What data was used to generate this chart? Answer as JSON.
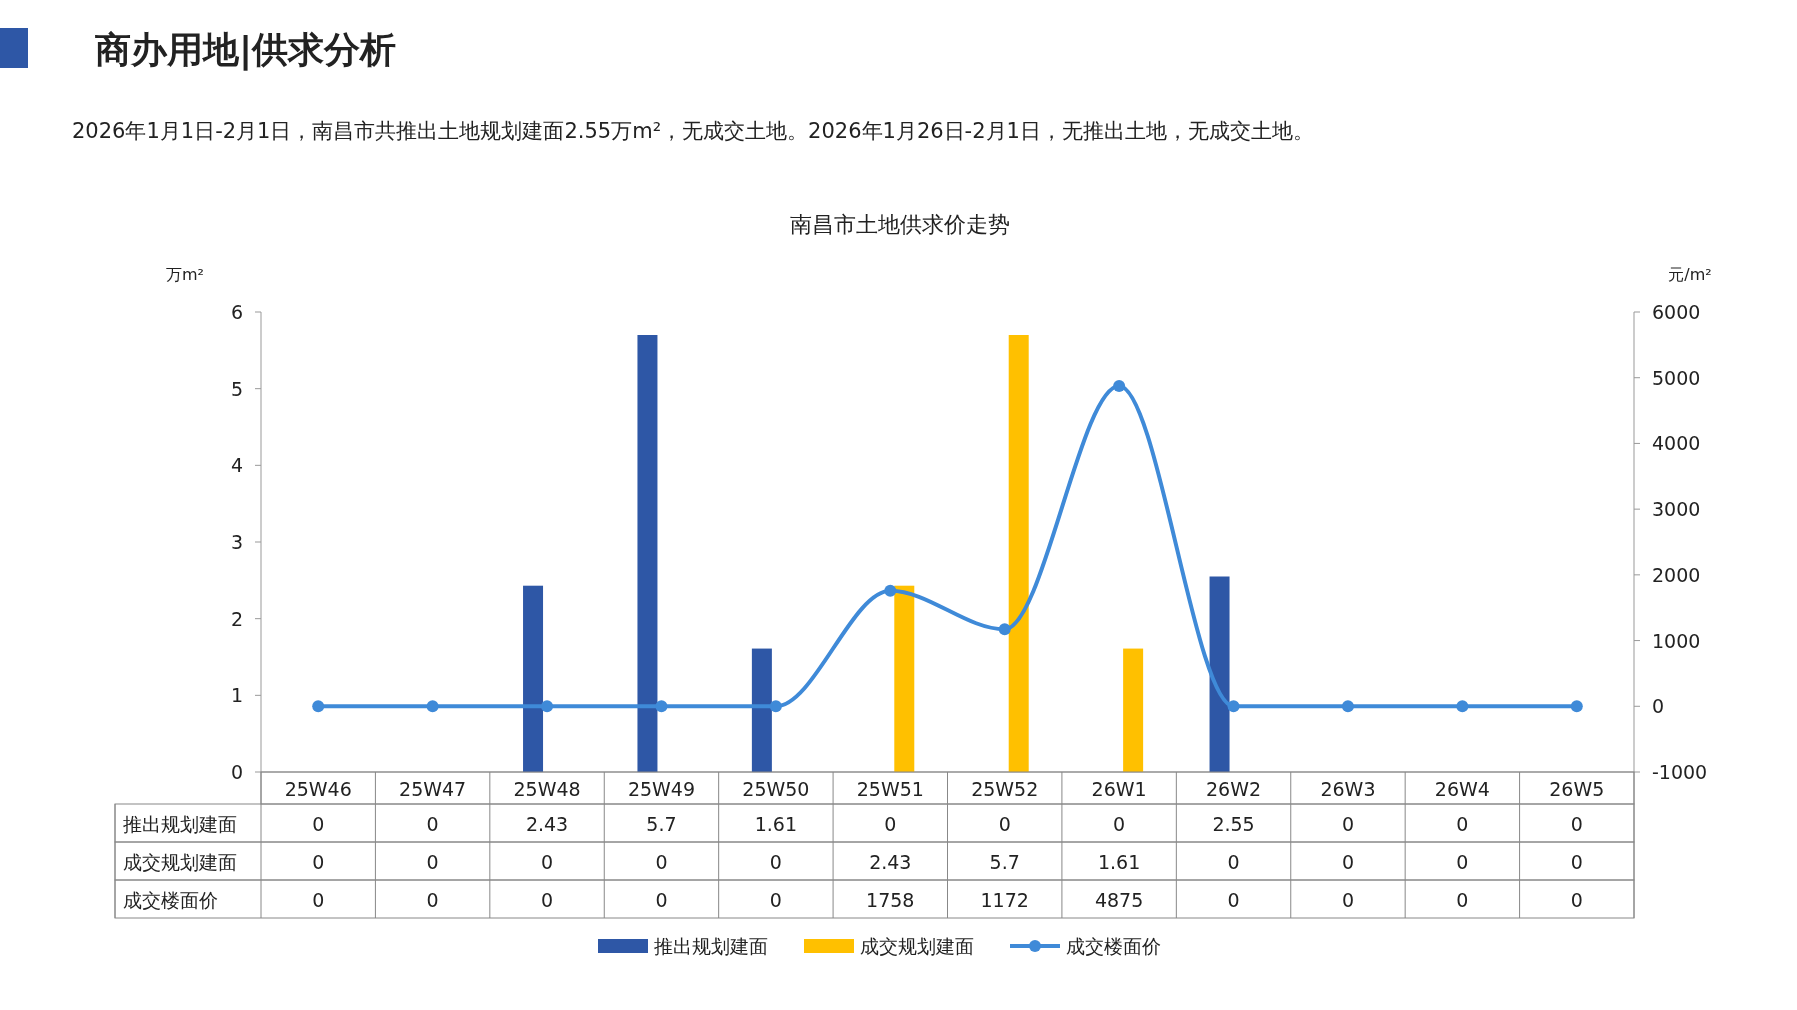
{
  "chart_data": {
    "type": "bar",
    "title": "南昌市土地供求价走势",
    "subtitle": "2026年1月1日-2月1日，南昌市共推出土地规划建面2.55万m²，无成交土地。2026年1月26日-2月1日，无推出土地，无成交土地。",
    "annotations": [
      "商办用地|供求分析"
    ],
    "ylabel": "万m²",
    "y2label": "元/m²",
    "categories": [
      "25W46",
      "25W47",
      "25W48",
      "25W49",
      "25W50",
      "25W51",
      "25W52",
      "26W1",
      "26W2",
      "26W3",
      "26W4",
      "26W5"
    ],
    "series": [
      {
        "name": "推出规划建面",
        "color": "#2e57a6",
        "values": [
          0,
          0,
          2.43,
          5.7,
          1.61,
          0,
          0,
          0,
          2.55,
          0,
          0,
          0
        ]
      },
      {
        "name": "成交规划建面",
        "color": "#ffc000",
        "values": [
          0,
          0,
          0,
          0,
          0,
          2.43,
          5.7,
          1.61,
          0,
          0,
          0,
          0
        ]
      },
      {
        "name": "成交楼面价",
        "type": "line",
        "axis": "y2",
        "color": "#3f8ad8",
        "marker": "circle",
        "line_style": "solid",
        "values": [
          0,
          0,
          0,
          0,
          0,
          1758,
          1172,
          4875,
          0,
          0,
          0,
          0
        ]
      }
    ],
    "ylim": [
      0,
      6
    ],
    "yticks": [
      0,
      1,
      2,
      3,
      4,
      5,
      6
    ],
    "y2lim": [
      -1000,
      6000
    ],
    "y2ticks": [
      -1000,
      0,
      1000,
      2000,
      3000,
      4000,
      5000,
      6000
    ],
    "data_labels": true,
    "legend": "bottom",
    "grid": false
  }
}
